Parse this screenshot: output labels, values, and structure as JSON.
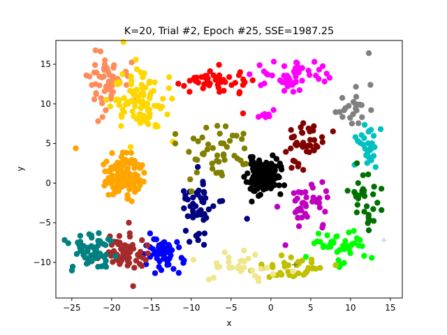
{
  "chart_data": {
    "type": "scatter",
    "title": "K=20, Trial #2, Epoch #25, SSE=1987.25",
    "xlabel": "x",
    "ylabel": "y",
    "xlim": [
      -27,
      16.5
    ],
    "ylim": [
      -14.5,
      18
    ],
    "xticks": [
      -25,
      -20,
      -15,
      -10,
      -5,
      0,
      5,
      10,
      15
    ],
    "yticks": [
      -10,
      -5,
      0,
      5,
      10,
      15
    ],
    "xtick_labels": [
      "−25",
      "−20",
      "−15",
      "−10",
      "−5",
      "0",
      "5",
      "10",
      "15"
    ],
    "ytick_labels": [
      "−10",
      "−5",
      "0",
      "5",
      "10",
      "15"
    ],
    "grid": false,
    "legend": "none",
    "clusters": [
      {
        "color": "#000000",
        "shape": "blob",
        "cx": -1.0,
        "cy": 0.8,
        "sx": 1.0,
        "sy": 1.1,
        "n": 130,
        "seed": 11
      },
      {
        "color": "#ffa500",
        "shape": "blob",
        "cx": -18.5,
        "cy": 1.0,
        "sx": 1.1,
        "sy": 1.2,
        "n": 140,
        "seed": 12
      },
      {
        "color": "#ff8c5a",
        "shape": "blob",
        "cx": -21.0,
        "cy": 12.8,
        "sx": 1.5,
        "sy": 1.8,
        "n": 55,
        "seed": 13
      },
      {
        "color": "#ffd700",
        "shape": "blob",
        "cx": -16.5,
        "cy": 10.5,
        "sx": 1.7,
        "sy": 2.2,
        "n": 95,
        "seed": 14
      },
      {
        "color": "#ff0000",
        "shape": "blob",
        "cx": -7.0,
        "cy": 12.8,
        "sx": 2.3,
        "sy": 1.0,
        "n": 45,
        "seed": 15
      },
      {
        "color": "#ff00ff",
        "shape": "blob",
        "cx": 2.5,
        "cy": 13.5,
        "sx": 2.4,
        "sy": 1.0,
        "n": 50,
        "seed": 16
      },
      {
        "color": "#808080",
        "shape": "blob",
        "cx": 10.0,
        "cy": 9.5,
        "sx": 1.2,
        "sy": 1.3,
        "n": 22,
        "seed": 17
      },
      {
        "color": "#00c0c0",
        "shape": "blob",
        "cx": 12.2,
        "cy": 4.5,
        "sx": 0.9,
        "sy": 1.6,
        "n": 28,
        "seed": 18
      },
      {
        "color": "#007000",
        "shape": "blob",
        "cx": 11.8,
        "cy": -1.8,
        "sx": 1.0,
        "sy": 2.0,
        "n": 32,
        "seed": 19
      },
      {
        "color": "#00ff00",
        "shape": "blob",
        "cx": 8.5,
        "cy": -7.8,
        "sx": 1.8,
        "sy": 1.0,
        "n": 40,
        "seed": 20
      },
      {
        "color": "#c0c000",
        "shape": "blob",
        "cx": 2.5,
        "cy": -10.8,
        "sx": 2.2,
        "sy": 0.9,
        "n": 38,
        "seed": 21
      },
      {
        "color": "#f0e68c",
        "shape": "blob",
        "cx": -3.5,
        "cy": -10.3,
        "sx": 2.0,
        "sy": 0.9,
        "n": 32,
        "seed": 22
      },
      {
        "color": "#0000ff",
        "shape": "blob",
        "cx": -14.0,
        "cy": -9.0,
        "sx": 1.4,
        "sy": 1.3,
        "n": 50,
        "seed": 23
      },
      {
        "color": "#a52a2a",
        "shape": "blob",
        "cx": -18.5,
        "cy": -8.8,
        "sx": 1.6,
        "sy": 1.2,
        "n": 60,
        "seed": 24
      },
      {
        "color": "#008080",
        "shape": "blob",
        "cx": -22.5,
        "cy": -8.8,
        "sx": 1.3,
        "sy": 1.2,
        "n": 60,
        "seed": 25
      },
      {
        "color": "#000080",
        "shape": "blob",
        "cx": -9.0,
        "cy": -3.5,
        "sx": 1.3,
        "sy": 2.2,
        "n": 45,
        "seed": 26
      },
      {
        "color": "#808000",
        "shape": "blob",
        "cx": -6.5,
        "cy": 3.8,
        "sx": 2.3,
        "sy": 1.8,
        "n": 45,
        "seed": 27
      },
      {
        "color": "#800000",
        "shape": "blob",
        "cx": 4.5,
        "cy": 4.8,
        "sx": 1.8,
        "sy": 1.4,
        "n": 40,
        "seed": 28
      },
      {
        "color": "#c000c0",
        "shape": "blob",
        "cx": 4.5,
        "cy": -2.5,
        "sx": 1.5,
        "sy": 1.6,
        "n": 40,
        "seed": 29
      },
      {
        "color": "#ff00ff",
        "shape": "blob",
        "cx": -0.5,
        "cy": 8.5,
        "sx": 0.6,
        "sy": 0.3,
        "n": 8,
        "seed": 30
      }
    ],
    "extra_points": [
      {
        "x": 12.3,
        "y": 16.4,
        "color": "#808080"
      },
      {
        "x": 12.5,
        "y": 12.4,
        "color": "#808080"
      },
      {
        "x": -12.0,
        "y": 6.2,
        "color": "#808000"
      },
      {
        "x": -12.0,
        "y": 5.0,
        "color": "#808000"
      },
      {
        "x": -24.5,
        "y": 4.4,
        "color": "#ffa500"
      },
      {
        "x": -17.3,
        "y": -13.0,
        "color": "#a52a2a"
      },
      {
        "x": -3.0,
        "y": -4.5,
        "color": "#000080"
      },
      {
        "x": -3.5,
        "y": 8.8,
        "color": "#ff0000"
      }
    ],
    "centroid_markers": [
      {
        "x": 14.2,
        "y": -7.2,
        "color": "#c8c8ff"
      },
      {
        "x": 3.0,
        "y": -10.3,
        "color": "#808000"
      }
    ]
  }
}
